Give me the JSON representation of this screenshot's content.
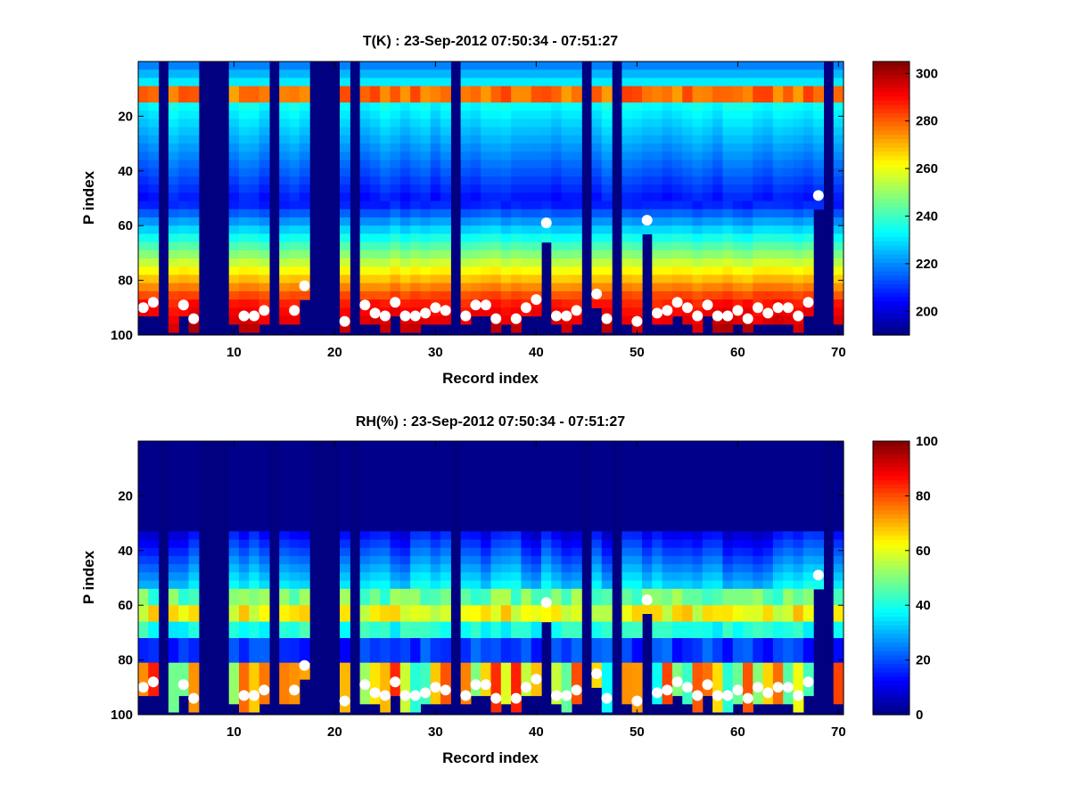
{
  "chart_data": [
    {
      "type": "heatmap",
      "title": "T(K) : 23-Sep-2012 07:50:34 - 07:51:27",
      "xlabel": "Record index",
      "ylabel": "P index",
      "xlim": [
        1,
        70
      ],
      "ylim": [
        0,
        100
      ],
      "y_reversed": true,
      "xticks": [
        10,
        20,
        30,
        40,
        50,
        60,
        70
      ],
      "yticks": [
        20,
        40,
        60,
        80,
        100
      ],
      "colorbar": {
        "min": 190,
        "max": 305,
        "ticks": [
          200,
          220,
          240,
          260,
          280,
          300
        ]
      },
      "missing_records": [
        3,
        7,
        8,
        9,
        14,
        18,
        19,
        20,
        22,
        32,
        45,
        48,
        69
      ],
      "profile_description": "Temperature increases with P index: cold (~200-220 K) near the top, warm band (~275-285 K) near P index 8-12, coldest (~200-210 K) around P index 30-50, warming to ~280-300 K near the surface (P index 85-97).",
      "markers": {
        "x": [
          1,
          2,
          5,
          6,
          11,
          12,
          13,
          16,
          17,
          21,
          23,
          24,
          25,
          26,
          27,
          28,
          29,
          30,
          31,
          33,
          34,
          35,
          36,
          38,
          39,
          40,
          41,
          42,
          43,
          44,
          46,
          47,
          50,
          51,
          52,
          53,
          54,
          55,
          56,
          57,
          58,
          59,
          60,
          61,
          62,
          63,
          64,
          65,
          66,
          67,
          68
        ],
        "y": [
          90,
          88,
          89,
          94,
          93,
          93,
          91,
          91,
          82,
          95,
          89,
          92,
          93,
          88,
          93,
          93,
          92,
          90,
          91,
          93,
          89,
          89,
          94,
          94,
          90,
          87,
          59,
          93,
          93,
          91,
          85,
          94,
          95,
          58,
          92,
          91,
          88,
          90,
          93,
          89,
          93,
          93,
          91,
          94,
          90,
          92,
          90,
          90,
          93,
          88,
          49
        ]
      }
    },
    {
      "type": "heatmap",
      "title": "RH(%) : 23-Sep-2012 07:50:34 - 07:51:27",
      "xlabel": "Record index",
      "ylabel": "P index",
      "xlim": [
        1,
        70
      ],
      "ylim": [
        0,
        100
      ],
      "y_reversed": true,
      "xticks": [
        10,
        20,
        30,
        40,
        50,
        60,
        70
      ],
      "yticks": [
        20,
        40,
        60,
        80,
        100
      ],
      "colorbar": {
        "min": 0,
        "max": 100,
        "ticks": [
          0,
          20,
          40,
          60,
          80,
          100
        ]
      },
      "missing_records": [
        3,
        7,
        8,
        9,
        14,
        18,
        19,
        20,
        22,
        32,
        45,
        48,
        69
      ],
      "profile_description": "Relative humidity near 0% above P index ~35; moist band (~50-70%) near P index 58-65; dry layer ~70-78; moist (~40-90%) near the surface P index 80-97.",
      "markers": {
        "x": [
          1,
          2,
          5,
          6,
          11,
          12,
          13,
          16,
          17,
          21,
          23,
          24,
          25,
          26,
          27,
          28,
          29,
          30,
          31,
          33,
          34,
          35,
          36,
          38,
          39,
          40,
          41,
          42,
          43,
          44,
          46,
          47,
          50,
          51,
          52,
          53,
          54,
          55,
          56,
          57,
          58,
          59,
          60,
          61,
          62,
          63,
          64,
          65,
          66,
          67,
          68
        ],
        "y": [
          90,
          88,
          89,
          94,
          93,
          93,
          91,
          91,
          82,
          95,
          89,
          92,
          93,
          88,
          93,
          93,
          92,
          90,
          91,
          93,
          89,
          89,
          94,
          94,
          90,
          87,
          59,
          93,
          93,
          91,
          85,
          94,
          95,
          58,
          92,
          91,
          88,
          90,
          93,
          89,
          93,
          93,
          91,
          94,
          90,
          92,
          90,
          90,
          93,
          88,
          49
        ]
      }
    }
  ]
}
